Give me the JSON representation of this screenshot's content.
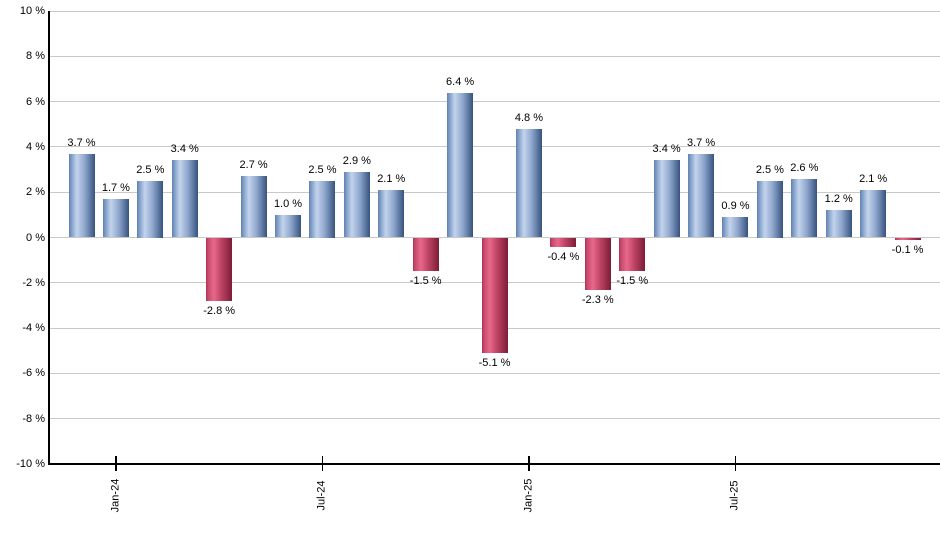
{
  "chart": {
    "background_color": "#ffffff",
    "axis_color": "#000000",
    "gridline_color": "#c9c9c9",
    "text_color": "#000000",
    "positive_bar_color": "#6d8dbd",
    "negative_bar_color": "#c0406a"
  },
  "chart_data": {
    "type": "bar",
    "title": "",
    "xlabel": "",
    "ylabel": "",
    "ylim": [
      -10,
      10
    ],
    "ytick_step": 2,
    "grid": true,
    "legend": false,
    "ytick_values": [
      10,
      8,
      6,
      4,
      2,
      0,
      -2,
      -4,
      -6,
      -8,
      -10
    ],
    "ytick_labels": [
      "10 %",
      "8 %",
      "6 %",
      "4 %",
      "2 %",
      "0 %",
      "-2 %",
      "-4 %",
      "-6 %",
      "-8 %",
      "-10 %"
    ],
    "values": [
      3.7,
      1.7,
      2.5,
      3.4,
      -2.8,
      2.7,
      1.0,
      2.5,
      2.9,
      2.1,
      -1.5,
      6.4,
      -5.1,
      4.8,
      -0.4,
      -2.3,
      -1.5,
      3.4,
      3.7,
      0.9,
      2.5,
      2.6,
      1.2,
      2.1,
      -0.1
    ],
    "bar_labels": [
      "3.7 %",
      "1.7 %",
      "2.5 %",
      "3.4 %",
      "-2.8 %",
      "2.7 %",
      "1.0 %",
      "2.5 %",
      "2.9 %",
      "2.1 %",
      "-1.5 %",
      "6.4 %",
      "-5.1 %",
      "4.8 %",
      "-0.4 %",
      "-2.3 %",
      "-1.5 %",
      "3.4 %",
      "3.7 %",
      "0.9 %",
      "2.5 %",
      "2.6 %",
      "1.2 %",
      "2.1 %",
      "-0.1 %"
    ],
    "xticks": [
      {
        "index": 1,
        "label": "Jan-24"
      },
      {
        "index": 7,
        "label": "Jul-24"
      },
      {
        "index": 13,
        "label": "Jan-25"
      },
      {
        "index": 19,
        "label": "Jul-25"
      }
    ]
  }
}
